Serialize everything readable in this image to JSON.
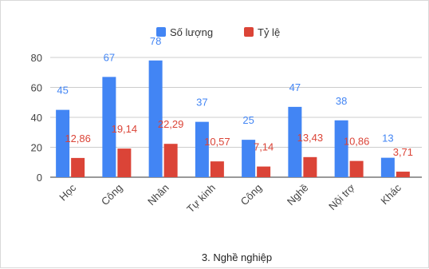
{
  "chart_data": {
    "type": "bar",
    "title": "3. Nghề nghiệp",
    "categories": [
      "Học",
      "Công",
      "Nhân",
      "Tự kinh",
      "Công",
      "Nghề",
      "Nội trợ",
      "Khác"
    ],
    "series": [
      {
        "name": "Số lượng",
        "color": "#4285f4",
        "values": [
          45,
          67,
          78,
          37,
          25,
          47,
          38,
          13
        ],
        "labels": [
          "45",
          "67",
          "78",
          "37",
          "25",
          "47",
          "38",
          "13"
        ]
      },
      {
        "name": "Tỷ lệ",
        "color": "#db4437",
        "values": [
          12.86,
          19.14,
          22.29,
          10.57,
          7.14,
          13.43,
          10.86,
          3.71
        ],
        "labels": [
          "12,86",
          "19,14",
          "22,29",
          "10,57",
          "7,14",
          "13,43",
          "10,86",
          "3,71"
        ]
      }
    ],
    "ylim": [
      0,
      80
    ],
    "yticks": [
      "0",
      "20",
      "40",
      "60",
      "80"
    ],
    "grid": true,
    "legend": "top"
  }
}
